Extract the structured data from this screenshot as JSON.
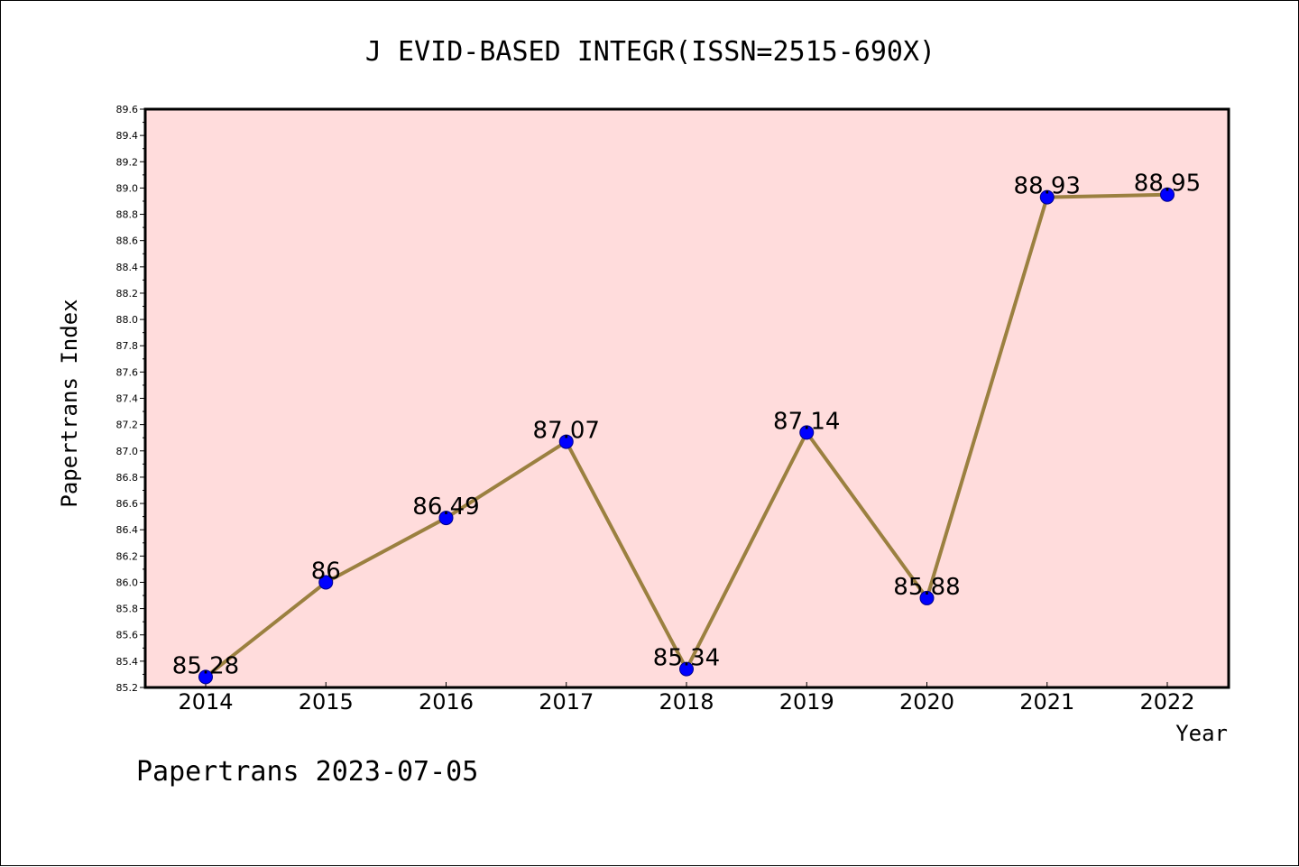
{
  "chart_data": {
    "type": "line",
    "title": "J EVID-BASED INTEGR(ISSN=2515-690X)",
    "xlabel": "Year",
    "ylabel": "Papertrans Index",
    "ylim": [
      85.2,
      89.6
    ],
    "yticks": [
      "85.2",
      "85.4",
      "85.6",
      "85.8",
      "86.0",
      "86.2",
      "86.4",
      "86.6",
      "86.8",
      "87.0",
      "87.2",
      "87.4",
      "87.6",
      "87.8",
      "88.0",
      "88.2",
      "88.4",
      "88.6",
      "88.8",
      "89.0",
      "89.2",
      "89.4",
      "89.6"
    ],
    "categories": [
      "2014",
      "2015",
      "2016",
      "2017",
      "2018",
      "2019",
      "2020",
      "2021",
      "2022"
    ],
    "series": [
      {
        "values": [
          85.28,
          86,
          86.49,
          87.07,
          85.34,
          87.14,
          85.88,
          88.93,
          88.95
        ],
        "labels": [
          "85.28",
          "86",
          "86.49",
          "87.07",
          "85.34",
          "87.14",
          "85.88",
          "88.93",
          "88.95"
        ]
      }
    ],
    "grid": false,
    "colors": {
      "plot_background": "#ffdcdc",
      "line": "#9b8040",
      "marker": "#0000ff",
      "marker_edge": "#00008b",
      "axes": "#000000"
    }
  },
  "footer": {
    "text": "Papertrans 2023-07-05"
  }
}
